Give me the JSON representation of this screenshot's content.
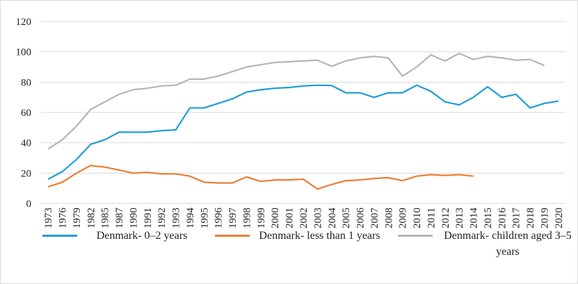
{
  "chart_data": {
    "type": "line",
    "categories": [
      "1973",
      "1976",
      "1979",
      "1982",
      "1985",
      "1987",
      "1990",
      "1991",
      "1992",
      "1993",
      "1994",
      "1995",
      "1996",
      "1997",
      "1998",
      "1999",
      "2000",
      "2001",
      "2002",
      "2003",
      "2004",
      "2005",
      "2006",
      "2007",
      "2008",
      "2009",
      "2010",
      "2011",
      "2012",
      "2013",
      "2014",
      "2015",
      "2016",
      "2017",
      "2018",
      "2019",
      "2020"
    ],
    "series": [
      {
        "name": "Denmark- 0–2 years",
        "color": "#1f9bd7",
        "values": [
          16,
          21,
          29,
          39,
          42,
          47,
          47,
          47,
          48,
          48.5,
          63,
          63,
          66,
          69,
          73.5,
          75,
          76,
          76.5,
          77.5,
          78,
          77.8,
          73,
          73,
          70,
          73,
          73,
          78,
          74,
          67,
          65,
          70,
          77,
          70,
          72,
          63,
          66,
          67.5
        ]
      },
      {
        "name": "Denmark- less than 1 years",
        "color": "#ed7d31",
        "values": [
          11,
          14,
          20,
          25,
          24,
          22,
          20,
          20.5,
          19.5,
          19.5,
          18,
          14,
          13.5,
          13.5,
          17.5,
          14.5,
          15.5,
          15.5,
          16,
          9.5,
          12.5,
          15,
          15.5,
          16.5,
          17,
          15,
          18,
          19,
          18.5,
          19,
          18,
          null,
          null,
          null,
          null,
          null,
          null
        ]
      },
      {
        "name": "Denmark- children aged 3–5 years",
        "color": "#b4b4b4",
        "values": [
          36,
          42,
          51,
          62,
          67,
          72,
          75,
          76,
          77.5,
          78,
          82,
          82,
          84,
          87,
          90,
          91.5,
          93,
          93.5,
          94,
          94.5,
          90.5,
          94,
          96,
          97,
          96,
          84,
          90,
          98,
          94,
          99,
          95,
          97,
          96,
          94.5,
          95,
          91,
          null
        ]
      }
    ],
    "ylim": [
      0,
      120
    ],
    "yticks": [
      0,
      20,
      40,
      60,
      80,
      100,
      120
    ],
    "grid": true
  }
}
